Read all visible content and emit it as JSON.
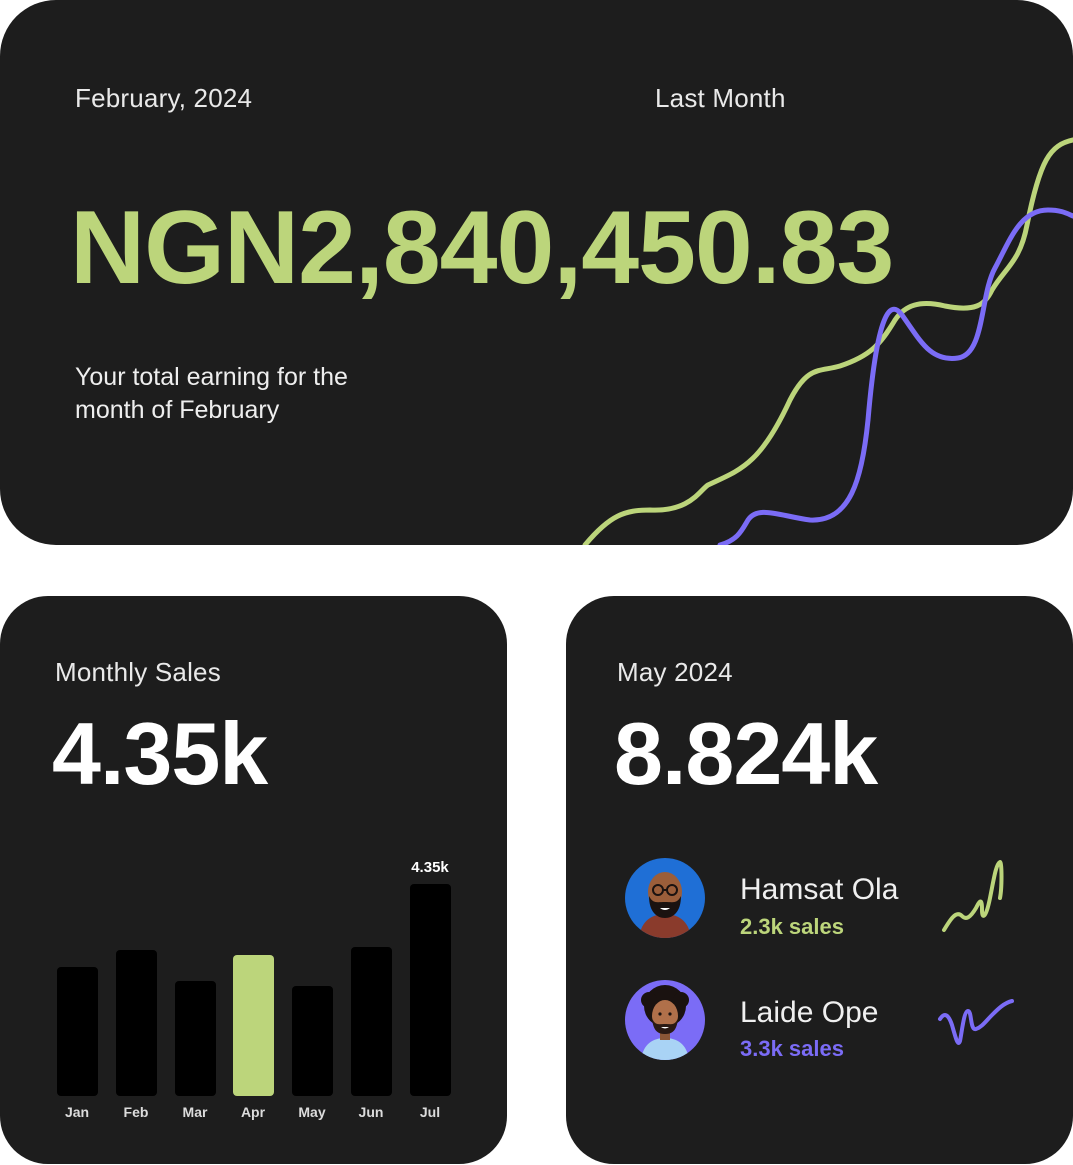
{
  "earnings": {
    "period": "February, 2024",
    "comparison_label": "Last Month",
    "amount": "NGN2,840,450.83",
    "description_line1": "Your total earning for the",
    "description_line2": "month of February",
    "colors": {
      "current": "#bcd57b",
      "previous": "#7b6cf6"
    }
  },
  "monthly_sales": {
    "title": "Monthly Sales",
    "total": "4.35k",
    "chart_data": {
      "type": "bar",
      "categories": [
        "Jan",
        "Feb",
        "Mar",
        "Apr",
        "May",
        "Jun",
        "Jul"
      ],
      "values": [
        2.65,
        3.0,
        2.35,
        2.9,
        2.25,
        3.05,
        4.35
      ],
      "highlight": "Apr",
      "value_label": "4.35k",
      "value_label_category": "Jul",
      "ylim": [
        0,
        4.5
      ],
      "colors": {
        "bar": "#000000",
        "highlight": "#bcd57b"
      }
    }
  },
  "top_sellers": {
    "period": "May 2024",
    "total": "8.824k",
    "sellers": [
      {
        "name": "Hamsat Ola",
        "sales": "2.3k sales",
        "color": "#bcd57b",
        "avatar_bg": "#1f6fd6",
        "avatar_icon": "bald-man-glasses-avatar-icon"
      },
      {
        "name": "Laide Ope",
        "sales": "3.3k sales",
        "color": "#7b6cf6",
        "avatar_bg": "#7b6cf6",
        "avatar_icon": "curly-hair-man-avatar-icon"
      }
    ]
  }
}
